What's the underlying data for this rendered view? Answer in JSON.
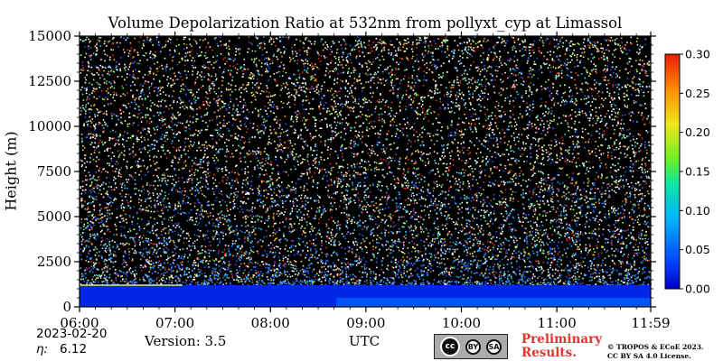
{
  "chart_data": {
    "type": "heatmap",
    "title": "Volume Depolarization Ratio at 532nm from pollyxt_cyp at Limassol",
    "ylabel": "Height (m)",
    "xlabel": "UTC",
    "x_ticks": [
      "06:00",
      "07:00",
      "08:00",
      "09:00",
      "10:00",
      "11:00",
      "11:59"
    ],
    "x_range": [
      "06:00",
      "11:59"
    ],
    "y_ticks": [
      0,
      2500,
      5000,
      7500,
      10000,
      12500,
      15000
    ],
    "ylim": [
      0,
      15000
    ],
    "colorbar": {
      "ticks": [
        "0.00",
        "0.05",
        "0.10",
        "0.15",
        "0.20",
        "0.25",
        "0.30"
      ],
      "range": [
        0,
        0.3
      ],
      "colormap": "jet"
    },
    "features": {
      "boundary_layer_top_m": 1200,
      "boundary_layer_value": 0.02,
      "lowest_overlap_value": 0.06,
      "background": "noisy signal above 1200 m, values spread 0.00-0.30"
    },
    "grid": false,
    "legend": "colorbar at right"
  },
  "footer": {
    "date": "2023-02-20",
    "eta_symbol": "η:",
    "eta_value": "6.12",
    "version": "Version: 3.5",
    "license_badge": [
      "cc",
      "BY",
      "SA"
    ],
    "preliminary": [
      "Preliminary",
      "Results."
    ],
    "copyright": [
      "© TROPOS & ECoE 2023.",
      "CC BY SA 4.0 License."
    ]
  }
}
